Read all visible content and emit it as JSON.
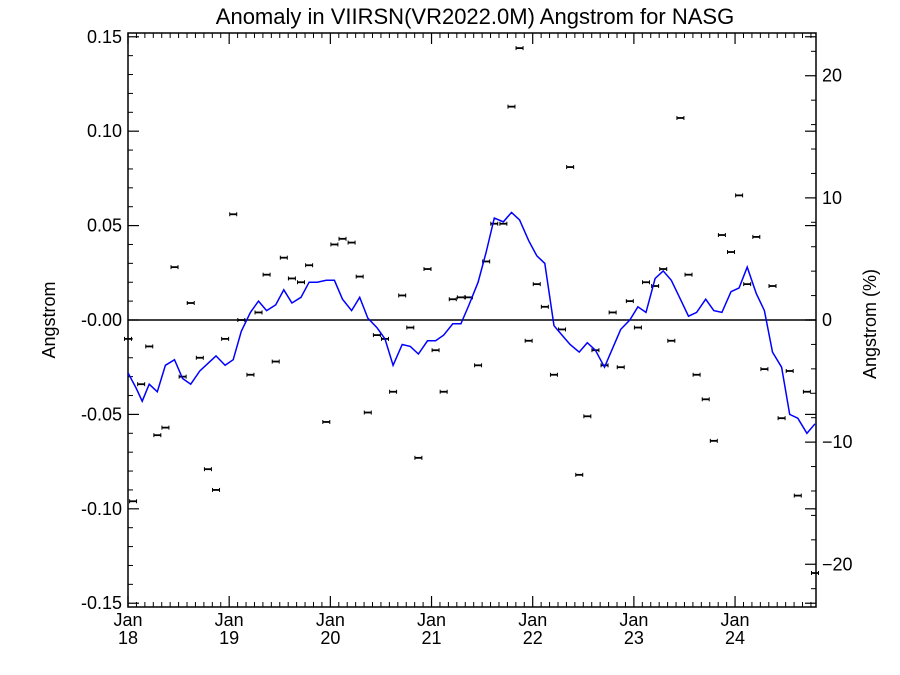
{
  "chart_data": {
    "type": "line",
    "title": "Anomaly in VIIRSN(VR2022.0M) Angstrom for NASG",
    "ylabel": "Angstrom",
    "y2label": "Angstrom (%)",
    "xlabel": "",
    "ylim": [
      -0.152,
      0.152
    ],
    "y2lim": [
      -23.5,
      23.5
    ],
    "xlim": [
      2018.0,
      2024.8
    ],
    "yticks": [
      {
        "v": 0.15,
        "label": "0.15"
      },
      {
        "v": 0.1,
        "label": "0.10"
      },
      {
        "v": 0.05,
        "label": "0.05"
      },
      {
        "v": 0.0,
        "label": "-0.00"
      },
      {
        "v": -0.05,
        "label": "-0.05"
      },
      {
        "v": -0.1,
        "label": "-0.10"
      },
      {
        "v": -0.15,
        "label": "-0.15"
      }
    ],
    "y2ticks": [
      {
        "v": 20,
        "label": "20"
      },
      {
        "v": 10,
        "label": "10"
      },
      {
        "v": 0,
        "label": "0"
      },
      {
        "v": -10,
        "label": "−10"
      },
      {
        "v": -20,
        "label": "−20"
      }
    ],
    "xticks": [
      {
        "v": 2018,
        "month": "Jan",
        "year": "18"
      },
      {
        "v": 2019,
        "month": "Jan",
        "year": "19"
      },
      {
        "v": 2020,
        "month": "Jan",
        "year": "20"
      },
      {
        "v": 2021,
        "month": "Jan",
        "year": "21"
      },
      {
        "v": 2022,
        "month": "Jan",
        "year": "22"
      },
      {
        "v": 2023,
        "month": "Jan",
        "year": "23"
      },
      {
        "v": 2024,
        "month": "Jan",
        "year": "24"
      }
    ],
    "zero_line": 0,
    "colors": {
      "line": "#0000ff",
      "points": "#000000",
      "zero": "#000000"
    },
    "series": [
      {
        "style": "line",
        "x": [
          2018.0,
          2018.08,
          2018.14,
          2018.21,
          2018.29,
          2018.37,
          2018.46,
          2018.54,
          2018.62,
          2018.71,
          2018.79,
          2018.87,
          2018.96,
          2019.04,
          2019.12,
          2019.21,
          2019.29,
          2019.37,
          2019.46,
          2019.54,
          2019.62,
          2019.71,
          2019.79,
          2019.87,
          2019.96,
          2020.04,
          2020.12,
          2020.21,
          2020.29,
          2020.37,
          2020.46,
          2020.54,
          2020.62,
          2020.71,
          2020.79,
          2020.87,
          2020.96,
          2021.04,
          2021.12,
          2021.21,
          2021.29,
          2021.37,
          2021.46,
          2021.54,
          2021.62,
          2021.71,
          2021.79,
          2021.87,
          2021.96,
          2022.04,
          2022.12,
          2022.21,
          2022.29,
          2022.37,
          2022.46,
          2022.54,
          2022.62,
          2022.71,
          2022.79,
          2022.87,
          2022.96,
          2023.04,
          2023.12,
          2023.21,
          2023.29,
          2023.37,
          2023.46,
          2023.54,
          2023.62,
          2023.71,
          2023.79,
          2023.87,
          2023.96,
          2024.04,
          2024.12,
          2024.21,
          2024.29,
          2024.37,
          2024.46,
          2024.54,
          2024.62,
          2024.71,
          2024.79
        ],
        "y": [
          -0.028,
          -0.036,
          -0.043,
          -0.034,
          -0.038,
          -0.024,
          -0.021,
          -0.031,
          -0.034,
          -0.027,
          -0.023,
          -0.019,
          -0.024,
          -0.021,
          -0.006,
          0.004,
          0.01,
          0.005,
          0.008,
          0.016,
          0.009,
          0.012,
          0.02,
          0.02,
          0.021,
          0.021,
          0.011,
          0.005,
          0.012,
          0.001,
          -0.004,
          -0.01,
          -0.024,
          -0.013,
          -0.014,
          -0.018,
          -0.011,
          -0.011,
          -0.008,
          -0.002,
          -0.002,
          0.008,
          0.02,
          0.036,
          0.054,
          0.052,
          0.057,
          0.053,
          0.042,
          0.034,
          0.03,
          -0.003,
          -0.008,
          -0.013,
          -0.017,
          -0.012,
          -0.016,
          -0.025,
          -0.015,
          -0.005,
          0.0,
          0.007,
          0.004,
          0.022,
          0.026,
          0.021,
          0.011,
          0.002,
          0.004,
          0.011,
          0.005,
          0.004,
          0.015,
          0.017,
          0.028,
          0.014,
          0.005,
          -0.017,
          -0.025,
          -0.05,
          -0.052,
          -0.06,
          -0.055
        ]
      },
      {
        "style": "points",
        "x": [
          2018.0,
          2018.05,
          2018.13,
          2018.21,
          2018.29,
          2018.37,
          2018.46,
          2018.54,
          2018.62,
          2018.71,
          2018.79,
          2018.87,
          2018.96,
          2019.04,
          2019.12,
          2019.21,
          2019.29,
          2019.37,
          2019.46,
          2019.54,
          2019.62,
          2019.71,
          2019.79,
          2019.96,
          2020.04,
          2020.12,
          2020.21,
          2020.29,
          2020.37,
          2020.46,
          2020.54,
          2020.62,
          2020.71,
          2020.79,
          2020.87,
          2020.96,
          2021.04,
          2021.12,
          2021.21,
          2021.29,
          2021.37,
          2021.46,
          2021.54,
          2021.62,
          2021.71,
          2021.79,
          2021.87,
          2021.96,
          2022.04,
          2022.12,
          2022.21,
          2022.29,
          2022.37,
          2022.46,
          2022.54,
          2022.62,
          2022.71,
          2022.79,
          2022.87,
          2022.96,
          2023.04,
          2023.12,
          2023.21,
          2023.29,
          2023.37,
          2023.46,
          2023.54,
          2023.62,
          2023.71,
          2023.79,
          2023.87,
          2023.96,
          2024.04,
          2024.12,
          2024.21,
          2024.29,
          2024.37,
          2024.46,
          2024.54,
          2024.62,
          2024.71,
          2024.79
        ],
        "y": [
          -0.01,
          -0.096,
          -0.034,
          -0.014,
          -0.061,
          -0.057,
          0.028,
          -0.03,
          0.009,
          -0.02,
          -0.079,
          -0.09,
          -0.01,
          0.056,
          0.0,
          -0.029,
          0.004,
          0.024,
          -0.022,
          0.033,
          0.022,
          0.02,
          0.029,
          -0.054,
          0.04,
          0.043,
          0.041,
          0.023,
          -0.049,
          -0.008,
          -0.01,
          -0.038,
          0.013,
          -0.004,
          -0.073,
          0.027,
          -0.016,
          -0.038,
          0.011,
          0.012,
          0.012,
          -0.024,
          0.031,
          0.051,
          0.051,
          0.113,
          0.144,
          -0.011,
          0.019,
          0.007,
          -0.029,
          -0.005,
          0.081,
          -0.082,
          -0.051,
          -0.016,
          -0.024,
          0.004,
          -0.025,
          0.01,
          -0.004,
          0.02,
          0.018,
          0.027,
          -0.011,
          0.107,
          0.024,
          -0.029,
          -0.042,
          -0.064,
          0.045,
          0.036,
          0.066,
          0.019,
          0.044,
          -0.026,
          0.018,
          -0.052,
          -0.027,
          -0.093,
          -0.038,
          -0.134
        ]
      }
    ]
  }
}
